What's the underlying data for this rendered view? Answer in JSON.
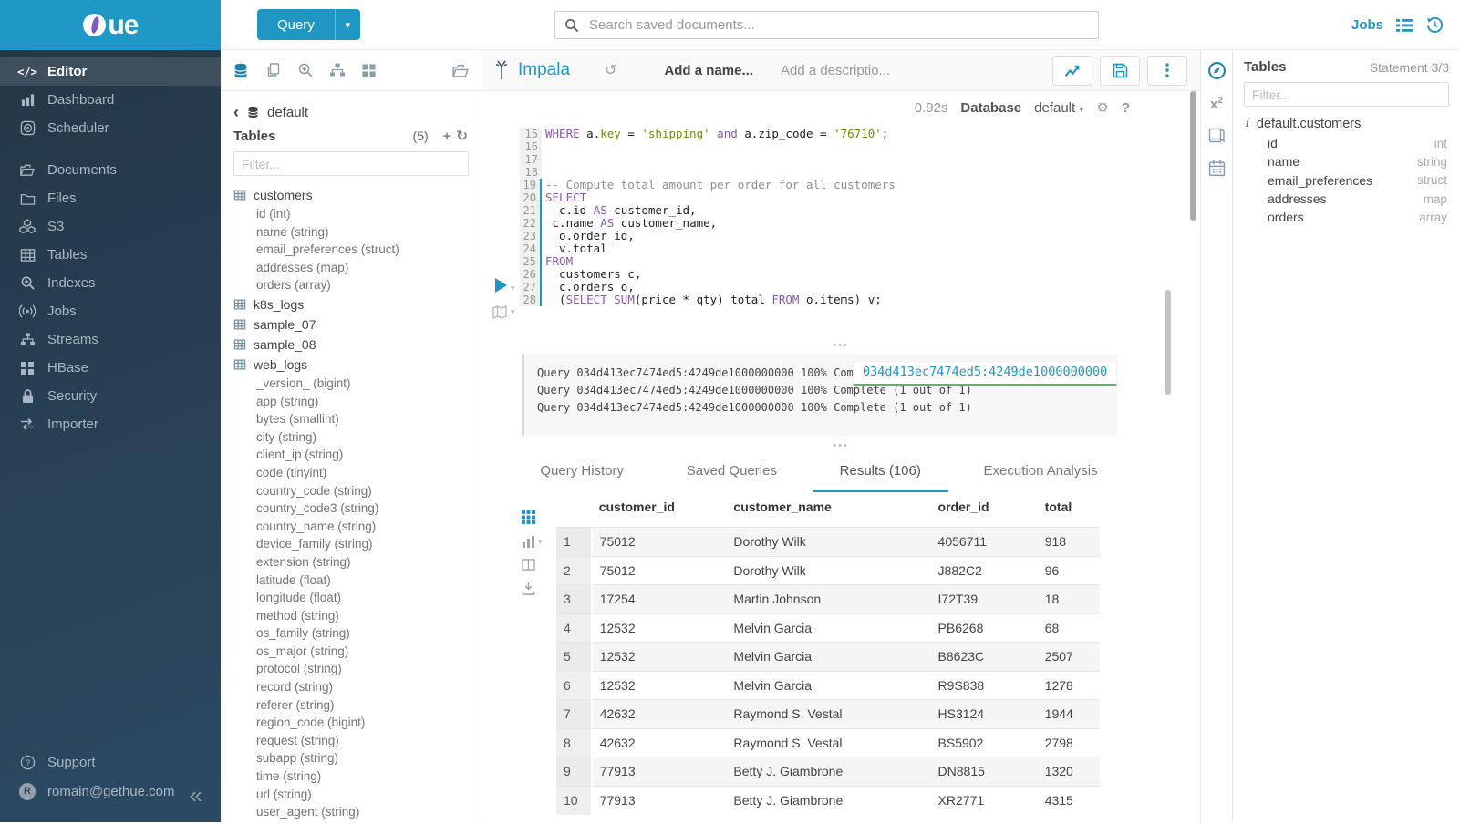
{
  "app": {
    "logo_text": "ue"
  },
  "topbar": {
    "query_label": "Query",
    "search_placeholder": "Search saved documents...",
    "jobs_label": "Jobs"
  },
  "sidebar": {
    "items": [
      {
        "label": "Editor",
        "icon": "editor",
        "active": true,
        "gap": false
      },
      {
        "label": "Dashboard",
        "icon": "dashboard",
        "active": false,
        "gap": false
      },
      {
        "label": "Scheduler",
        "icon": "scheduler",
        "active": false,
        "gap": false
      },
      {
        "label": "Documents",
        "icon": "documents",
        "active": false,
        "gap": true
      },
      {
        "label": "Files",
        "icon": "files",
        "active": false,
        "gap": false
      },
      {
        "label": "S3",
        "icon": "s3",
        "active": false,
        "gap": false
      },
      {
        "label": "Tables",
        "icon": "tables",
        "active": false,
        "gap": false
      },
      {
        "label": "Indexes",
        "icon": "indexes",
        "active": false,
        "gap": false
      },
      {
        "label": "Jobs",
        "icon": "jobs",
        "active": false,
        "gap": false
      },
      {
        "label": "Streams",
        "icon": "streams",
        "active": false,
        "gap": false
      },
      {
        "label": "HBase",
        "icon": "hbase",
        "active": false,
        "gap": false
      },
      {
        "label": "Security",
        "icon": "security",
        "active": false,
        "gap": false
      },
      {
        "label": "Importer",
        "icon": "importer",
        "active": false,
        "gap": false
      }
    ],
    "support_label": "Support",
    "user_email": "romain@gethue.com",
    "avatar_letter": "R"
  },
  "left_panel": {
    "database": "default",
    "tables_label": "Tables",
    "count": "(5)",
    "filter_placeholder": "Filter...",
    "tables": [
      {
        "name": "customers",
        "columns": [
          "id (int)",
          "name (string)",
          "email_preferences (struct)",
          "addresses (map)",
          "orders (array)"
        ]
      },
      {
        "name": "k8s_logs",
        "columns": []
      },
      {
        "name": "sample_07",
        "columns": []
      },
      {
        "name": "sample_08",
        "columns": []
      },
      {
        "name": "web_logs",
        "columns": [
          "_version_ (bigint)",
          "app (string)",
          "bytes (smallint)",
          "city (string)",
          "client_ip (string)",
          "code (tinyint)",
          "country_code (string)",
          "country_code3 (string)",
          "country_name (string)",
          "device_family (string)",
          "extension (string)",
          "latitude (float)",
          "longitude (float)",
          "method (string)",
          "os_family (string)",
          "os_major (string)",
          "protocol (string)",
          "record (string)",
          "referer (string)",
          "region_code (bigint)",
          "request (string)",
          "subapp (string)",
          "time (string)",
          "url (string)",
          "user_agent (string)"
        ]
      }
    ]
  },
  "editor": {
    "engine": "Impala",
    "name_placeholder": "Add a name...",
    "desc_placeholder": "Add a descriptio...",
    "duration": "0.92s",
    "database_label": "Database",
    "database_value": "default",
    "lines": [
      {
        "n": "15",
        "mark": false,
        "tokens": [
          [
            "WHERE",
            "kw"
          ],
          [
            " a.",
            "pln"
          ],
          [
            "key",
            "str"
          ],
          [
            " = ",
            "pln"
          ],
          [
            "'shipping'",
            "str"
          ],
          [
            " ",
            "pln"
          ],
          [
            "and",
            "kw"
          ],
          [
            " a.zip_code = ",
            "pln"
          ],
          [
            "'76710'",
            "str"
          ],
          [
            ";",
            "pln"
          ]
        ]
      },
      {
        "n": "16",
        "mark": false,
        "tokens": []
      },
      {
        "n": "17",
        "mark": false,
        "tokens": []
      },
      {
        "n": "18",
        "mark": false,
        "tokens": []
      },
      {
        "n": "19",
        "mark": true,
        "tokens": [
          [
            "-- Compute total amount per order for all customers",
            "cmt"
          ]
        ]
      },
      {
        "n": "20",
        "mark": true,
        "tokens": [
          [
            "SELECT",
            "kw"
          ]
        ]
      },
      {
        "n": "21",
        "mark": true,
        "tokens": [
          [
            "  c.id ",
            "pln"
          ],
          [
            "AS",
            "kw"
          ],
          [
            " customer_id,",
            "pln"
          ]
        ]
      },
      {
        "n": "22",
        "mark": true,
        "tokens": [
          [
            " c.name ",
            "pln"
          ],
          [
            "AS",
            "kw"
          ],
          [
            " customer_name,",
            "pln"
          ]
        ]
      },
      {
        "n": "23",
        "mark": true,
        "tokens": [
          [
            "  o.order_id,",
            "pln"
          ]
        ]
      },
      {
        "n": "24",
        "mark": true,
        "tokens": [
          [
            "  v.total",
            "pln"
          ]
        ]
      },
      {
        "n": "25",
        "mark": true,
        "tokens": [
          [
            "FROM",
            "kw"
          ]
        ]
      },
      {
        "n": "26",
        "mark": true,
        "tokens": [
          [
            "  customers c,",
            "pln"
          ]
        ]
      },
      {
        "n": "27",
        "mark": true,
        "tokens": [
          [
            "  c.orders o,",
            "pln"
          ]
        ]
      },
      {
        "n": "28",
        "mark": true,
        "tokens": [
          [
            "  (",
            "pln"
          ],
          [
            "SELECT",
            "kw"
          ],
          [
            " ",
            "pln"
          ],
          [
            "SUM",
            "kw"
          ],
          [
            "(price * qty) total ",
            "pln"
          ],
          [
            "FROM",
            "kw"
          ],
          [
            " o.items) v;",
            "pln"
          ]
        ]
      }
    ]
  },
  "logs": {
    "lines": [
      "Query 034d413ec7474ed5:4249de1000000000 100% Complete (1 out of 1)",
      "Query 034d413ec7474ed5:4249de1000000000 100% Complete (1 out of 1)",
      "Query 034d413ec7474ed5:4249de1000000000 100% Complete (1 out of 1)"
    ],
    "tooltip": "034d413ec7474ed5:4249de1000000000"
  },
  "tabs": [
    {
      "label": "Query History",
      "active": false
    },
    {
      "label": "Saved Queries",
      "active": false
    },
    {
      "label": "Results (106)",
      "active": true
    },
    {
      "label": "Execution Analysis",
      "active": false
    }
  ],
  "results": {
    "columns": [
      "customer_id",
      "customer_name",
      "order_id",
      "total"
    ],
    "rows": [
      [
        "1",
        "75012",
        "Dorothy Wilk",
        "4056711",
        "918"
      ],
      [
        "2",
        "75012",
        "Dorothy Wilk",
        "J882C2",
        "96"
      ],
      [
        "3",
        "17254",
        "Martin Johnson",
        "I72T39",
        "18"
      ],
      [
        "4",
        "12532",
        "Melvin Garcia",
        "PB6268",
        "68"
      ],
      [
        "5",
        "12532",
        "Melvin Garcia",
        "B8623C",
        "2507"
      ],
      [
        "6",
        "12532",
        "Melvin Garcia",
        "R9S838",
        "1278"
      ],
      [
        "7",
        "42632",
        "Raymond S. Vestal",
        "HS3124",
        "1944"
      ],
      [
        "8",
        "42632",
        "Raymond S. Vestal",
        "BS5902",
        "2798"
      ],
      [
        "9",
        "77913",
        "Betty J. Giambrone",
        "DN8815",
        "1320"
      ],
      [
        "10",
        "77913",
        "Betty J. Giambrone",
        "XR2771",
        "4315"
      ]
    ]
  },
  "right_panel": {
    "title": "Tables",
    "statement": "Statement 3/3",
    "filter_placeholder": "Filter...",
    "table_name": "default.customers",
    "columns": [
      {
        "name": "id",
        "type": "int"
      },
      {
        "name": "name",
        "type": "string"
      },
      {
        "name": "email_preferences",
        "type": "struct"
      },
      {
        "name": "addresses",
        "type": "map"
      },
      {
        "name": "orders",
        "type": "array"
      }
    ]
  },
  "colors": {
    "accent": "#2096c2",
    "logo_bar": "#2098c6",
    "progress_green": "#5cb860"
  }
}
